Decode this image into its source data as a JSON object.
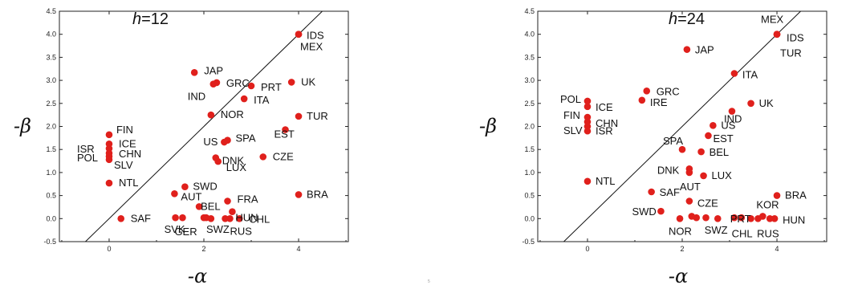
{
  "page_mark": "5",
  "chart_data": [
    {
      "type": "scatter",
      "title": "h=12",
      "title_parts": [
        "h",
        "=12"
      ],
      "xlabel": "-α",
      "ylabel": "-β",
      "xlim": [
        -1.05,
        5.05
      ],
      "ylim": [
        -0.5,
        4.5
      ],
      "x_ticks": [
        "0",
        "2",
        "4"
      ],
      "x_tick_values": [
        0,
        2,
        4
      ],
      "y_ticks": [
        "-0.5",
        "0.0",
        "0.5",
        "1.0",
        "1.5",
        "2.0",
        "2.5",
        "3.0",
        "3.5",
        "4.0",
        "4.5"
      ],
      "y_tick_values": [
        -0.5,
        0.0,
        0.5,
        1.0,
        1.5,
        2.0,
        2.5,
        3.0,
        3.5,
        4.0,
        4.5
      ],
      "grid": false,
      "reference_line": "y = x",
      "marker_color": "#e0201c",
      "points": [
        {
          "label": "IDS",
          "x": 4.0,
          "y": 4.0
        },
        {
          "label": "MEX",
          "x": 4.0,
          "y": 4.0
        },
        {
          "label": "JAP",
          "x": 1.8,
          "y": 3.17
        },
        {
          "label": "GRC",
          "x": 2.27,
          "y": 2.95
        },
        {
          "label": "IND",
          "x": 2.2,
          "y": 2.92
        },
        {
          "label": "PRT",
          "x": 3.0,
          "y": 2.88
        },
        {
          "label": "UK",
          "x": 3.85,
          "y": 2.96
        },
        {
          "label": "ITA",
          "x": 2.85,
          "y": 2.6
        },
        {
          "label": "NOR",
          "x": 2.15,
          "y": 2.25
        },
        {
          "label": "TUR",
          "x": 4.0,
          "y": 2.22
        },
        {
          "label": "FIN",
          "x": 0.0,
          "y": 1.82
        },
        {
          "label": "EST",
          "x": 3.72,
          "y": 1.93
        },
        {
          "label": "ICE",
          "x": 0.0,
          "y": 1.62
        },
        {
          "label": "ISR",
          "x": 0.0,
          "y": 1.52
        },
        {
          "label": "CHN",
          "x": 0.0,
          "y": 1.42
        },
        {
          "label": "POL",
          "x": 0.0,
          "y": 1.35
        },
        {
          "label": "SLV",
          "x": 0.0,
          "y": 1.28
        },
        {
          "label": "US",
          "x": 2.43,
          "y": 1.66
        },
        {
          "label": "SPA",
          "x": 2.5,
          "y": 1.7
        },
        {
          "label": "DNK",
          "x": 2.25,
          "y": 1.32
        },
        {
          "label": "LUX",
          "x": 2.3,
          "y": 1.24
        },
        {
          "label": "CZE",
          "x": 3.25,
          "y": 1.34
        },
        {
          "label": "NTL",
          "x": 0.0,
          "y": 0.77
        },
        {
          "label": "SWD",
          "x": 1.6,
          "y": 0.69
        },
        {
          "label": "AUT",
          "x": 1.38,
          "y": 0.54
        },
        {
          "label": "BRA",
          "x": 4.0,
          "y": 0.52
        },
        {
          "label": "FRA",
          "x": 2.5,
          "y": 0.38
        },
        {
          "label": "BEL",
          "x": 1.9,
          "y": 0.26
        },
        {
          "label": "HUN",
          "x": 2.6,
          "y": 0.15
        },
        {
          "label": "SAF",
          "x": 0.25,
          "y": 0.0
        },
        {
          "label": "SVK",
          "x": 1.4,
          "y": 0.02
        },
        {
          "label": "GER",
          "x": 1.55,
          "y": 0.02
        },
        {
          "label": "SWZ",
          "x": 2.05,
          "y": 0.02
        },
        {
          "label": "CHL",
          "x": 2.75,
          "y": 0.0
        },
        {
          "label": "RUS",
          "x": 2.55,
          "y": 0.0
        },
        {
          "label": "",
          "x": 2.0,
          "y": 0.02
        },
        {
          "label": "",
          "x": 2.15,
          "y": 0.0
        },
        {
          "label": "",
          "x": 2.45,
          "y": 0.0
        }
      ]
    },
    {
      "type": "scatter",
      "title": "h=24",
      "title_parts": [
        "h",
        "=24"
      ],
      "xlabel": "-α",
      "ylabel": "-β",
      "xlim": [
        -1.05,
        5.05
      ],
      "ylim": [
        -0.5,
        4.5
      ],
      "x_ticks": [
        "0",
        "2",
        "4"
      ],
      "x_tick_values": [
        0,
        2,
        4
      ],
      "y_ticks": [
        "-0.5",
        "0.0",
        "0.5",
        "1.0",
        "1.5",
        "2.0",
        "2.5",
        "3.0",
        "3.5",
        "4.0",
        "4.5"
      ],
      "y_tick_values": [
        -0.5,
        0.0,
        0.5,
        1.0,
        1.5,
        2.0,
        2.5,
        3.0,
        3.5,
        4.0,
        4.5
      ],
      "grid": false,
      "reference_line": "y = x",
      "marker_color": "#e0201c",
      "points": [
        {
          "label": "MEX",
          "x": 4.0,
          "y": 4.0
        },
        {
          "label": "IDS",
          "x": 4.0,
          "y": 4.0
        },
        {
          "label": "TUR",
          "x": 4.0,
          "y": 4.0
        },
        {
          "label": "JAP",
          "x": 2.1,
          "y": 3.67
        },
        {
          "label": "ITA",
          "x": 3.1,
          "y": 3.15
        },
        {
          "label": "GRC",
          "x": 1.25,
          "y": 2.77
        },
        {
          "label": "IRE",
          "x": 1.15,
          "y": 2.57
        },
        {
          "label": "POL",
          "x": 0.0,
          "y": 2.55
        },
        {
          "label": "ICE",
          "x": 0.0,
          "y": 2.43
        },
        {
          "label": "FIN",
          "x": 0.0,
          "y": 2.2
        },
        {
          "label": "CHN",
          "x": 0.0,
          "y": 2.1
        },
        {
          "label": "SLV",
          "x": 0.0,
          "y": 1.9
        },
        {
          "label": "ISR",
          "x": 0.0,
          "y": 2.0
        },
        {
          "label": "UK",
          "x": 3.45,
          "y": 2.5
        },
        {
          "label": "IND",
          "x": 3.05,
          "y": 2.33
        },
        {
          "label": "US",
          "x": 2.65,
          "y": 2.02
        },
        {
          "label": "EST",
          "x": 2.55,
          "y": 1.8
        },
        {
          "label": "SPA",
          "x": 2.0,
          "y": 1.5
        },
        {
          "label": "BEL",
          "x": 2.4,
          "y": 1.45
        },
        {
          "label": "DNK",
          "x": 2.15,
          "y": 1.08
        },
        {
          "label": "AUT",
          "x": 2.15,
          "y": 1.0
        },
        {
          "label": "LUX",
          "x": 2.45,
          "y": 0.93
        },
        {
          "label": "NTL",
          "x": 0.0,
          "y": 0.81
        },
        {
          "label": "SAF",
          "x": 1.35,
          "y": 0.58
        },
        {
          "label": "BRA",
          "x": 4.0,
          "y": 0.5
        },
        {
          "label": "CZE",
          "x": 2.15,
          "y": 0.38
        },
        {
          "label": "SWD",
          "x": 1.55,
          "y": 0.16
        },
        {
          "label": "KOR",
          "x": 3.7,
          "y": 0.05
        },
        {
          "label": "NOR",
          "x": 1.95,
          "y": 0.0
        },
        {
          "label": "SWZ",
          "x": 2.3,
          "y": 0.02
        },
        {
          "label": "PRT",
          "x": 3.25,
          "y": 0.02
        },
        {
          "label": "HUN",
          "x": 3.95,
          "y": 0.0
        },
        {
          "label": "CHL",
          "x": 3.45,
          "y": 0.0
        },
        {
          "label": "RUS",
          "x": 3.85,
          "y": 0.0
        },
        {
          "label": "",
          "x": 2.2,
          "y": 0.05
        },
        {
          "label": "",
          "x": 2.5,
          "y": 0.02
        },
        {
          "label": "",
          "x": 2.75,
          "y": 0.0
        },
        {
          "label": "",
          "x": 3.1,
          "y": 0.02
        },
        {
          "label": "",
          "x": 3.6,
          "y": 0.0
        }
      ]
    }
  ]
}
